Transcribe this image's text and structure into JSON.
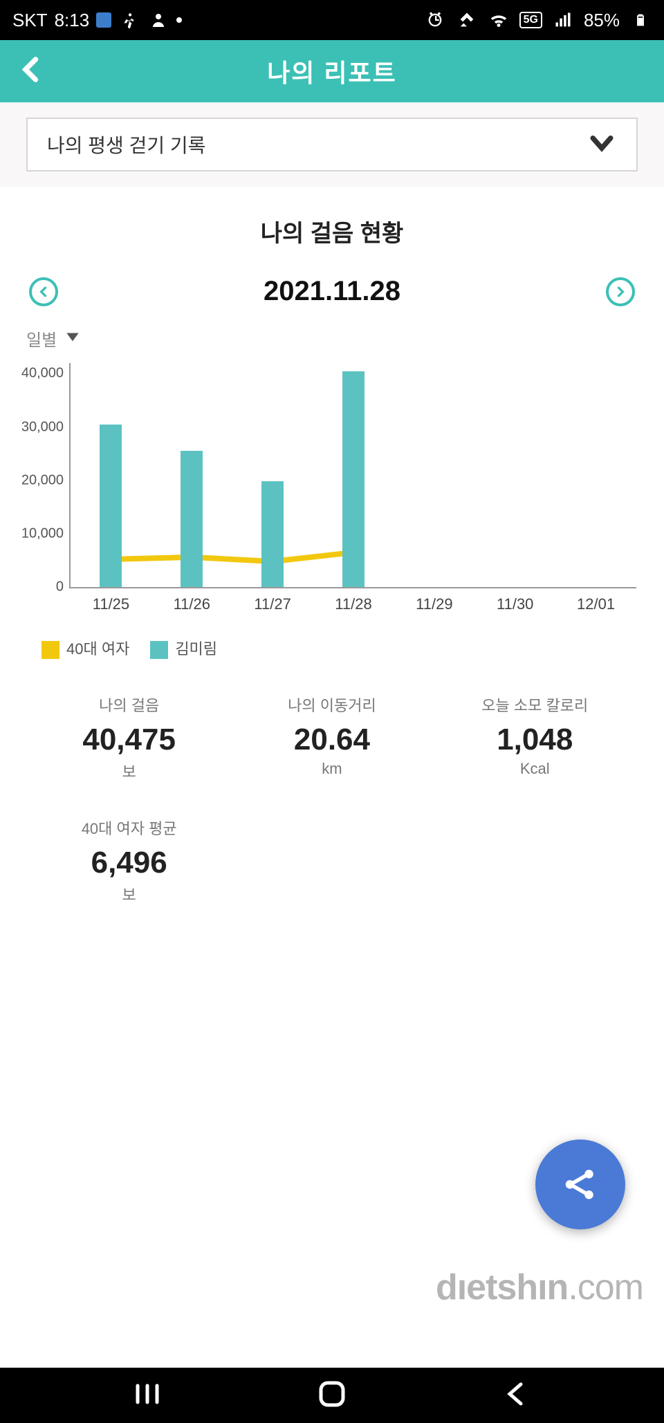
{
  "status": {
    "carrier": "SKT",
    "time": "8:13",
    "battery": "85%"
  },
  "appbar": {
    "title": "나의 리포트"
  },
  "dropdown": {
    "label": "나의 평생 걷기 기록"
  },
  "section": {
    "title": "나의 걸음 현황",
    "date": "2021.11.28"
  },
  "granularity": {
    "label": "일별"
  },
  "chart": {
    "type": "bar+line",
    "ymax": 42000,
    "yticks": [
      0,
      10000,
      20000,
      30000,
      40000
    ],
    "ytick_labels": [
      "0",
      "10,000",
      "20,000",
      "30,000",
      "40,000"
    ],
    "categories": [
      "11/25",
      "11/26",
      "11/27",
      "11/28",
      "11/29",
      "11/30",
      "12/01"
    ],
    "bars": [
      30500,
      25500,
      19800,
      40475,
      null,
      null,
      null
    ],
    "line": [
      5200,
      5600,
      4800,
      6496,
      null,
      null,
      null
    ],
    "bar_color": "#5bc2c1",
    "line_color": "#f2c80f",
    "line_width": 8,
    "marker_color": "#ffffff",
    "axis_color": "#999999",
    "label_color": "#555555",
    "label_fontsize": 20
  },
  "legend": {
    "items": [
      {
        "color": "#f2c80f",
        "label": "40대 여자"
      },
      {
        "color": "#5bc2c1",
        "label": "김미림"
      }
    ]
  },
  "stats": [
    {
      "h": "나의 걸음",
      "v": "40,475",
      "u": "보"
    },
    {
      "h": "나의 이동거리",
      "v": "20.64",
      "u": "km"
    },
    {
      "h": "오늘 소모 칼로리",
      "v": "1,048",
      "u": "Kcal"
    },
    {
      "h": "40대 여자 평균",
      "v": "6,496",
      "u": "보"
    }
  ],
  "watermark": {
    "a": "dıetshın",
    "b": ".com"
  },
  "colors": {
    "appbar": "#3cc0b5",
    "fab": "#4b7ad6"
  }
}
